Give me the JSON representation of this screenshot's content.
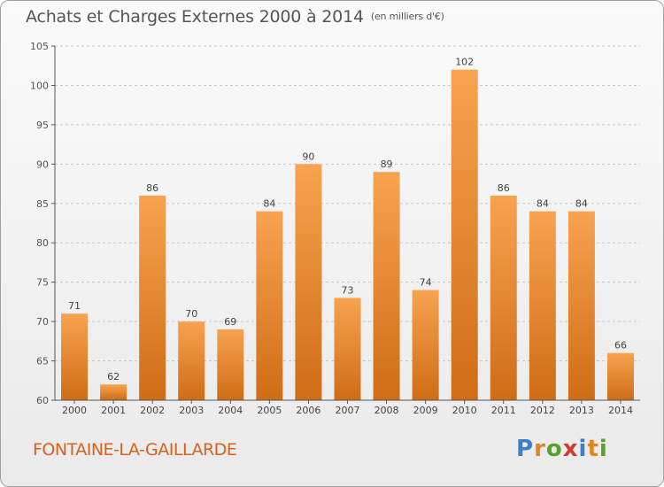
{
  "title": "Achats et Charges Externes 2000 à 2014",
  "unit": "(en milliers d'€)",
  "commune": "FONTAINE-LA-GAILLARDE",
  "logo": {
    "letters": [
      "P",
      "r",
      "o",
      "x",
      "i",
      "t",
      "i"
    ],
    "colors": [
      "#3b7fc4",
      "#e0861f",
      "#5aa02c",
      "#d43b2d",
      "#3b7fc4",
      "#e0861f",
      "#5aa02c"
    ]
  },
  "colors": {
    "bar_top": "#f7a34f",
    "bar_bottom": "#d06c16",
    "text": "#555555",
    "commune": "#d9621a"
  },
  "chart_data": {
    "type": "bar",
    "categories": [
      "2000",
      "2001",
      "2002",
      "2003",
      "2004",
      "2005",
      "2006",
      "2007",
      "2008",
      "2009",
      "2010",
      "2011",
      "2012",
      "2013",
      "2014"
    ],
    "values": [
      71,
      62,
      86,
      70,
      69,
      84,
      90,
      73,
      89,
      74,
      102,
      86,
      84,
      84,
      66
    ],
    "ylim": [
      60,
      105
    ],
    "yticks": [
      60,
      65,
      70,
      75,
      80,
      85,
      90,
      95,
      100,
      105
    ],
    "grid": true
  }
}
